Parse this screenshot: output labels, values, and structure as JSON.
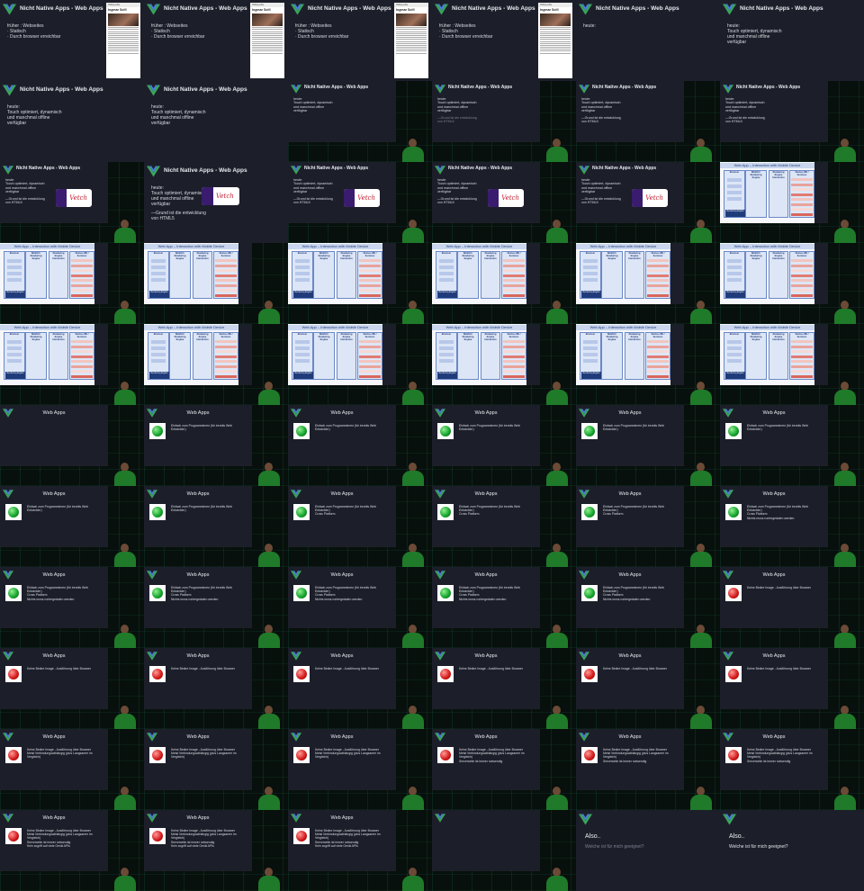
{
  "slides": {
    "nna_title": "Nicht Native Apps - Web Apps",
    "webapps_title": "Web Apps",
    "diagram_title": "Web App – Interaction with Mobile Device",
    "frueher_heading": "früher : Webseites",
    "frueher_items": [
      "Statisch",
      "Durch browser erreichbar"
    ],
    "heute_heading": "heute:",
    "heute_items": [
      "Touch optimiert, dynamisch",
      "und manchmal offline",
      "verfügbar"
    ],
    "grund_items": [
      "—Grund ist die entwicklung",
      "von HTML5"
    ],
    "pro_items": [
      "Einfach zum Programmieren (für bereits Web",
      "Entwickler)",
      "Cross Platform",
      "Nichts muss runtergeladen werden"
    ],
    "contra_items": [
      "Keine Binäre Image - Ausführung über Browser",
      "Meist Verbindungsabhängig (plus Langsamer im",
      "Vergleich)",
      "Serverseite ist immer notwendig",
      "Kein zugriff auf viele Gerät APIs"
    ],
    "also": "Also..",
    "question": "Welche ist für mich geeignet?",
    "phone_bar": "Wikipedia",
    "phone_title": "Ingmar Scifi",
    "logo_text": "Vetch"
  },
  "colors": {
    "slide_bg": "#1c1f2a",
    "accent_green": "#12a12a",
    "accent_red": "#d41616",
    "diagram_blue": "#203a78"
  },
  "diagram": {
    "columns": [
      "Browser",
      "WebKit / Rendering Engine",
      "Rendering Engine Interaction",
      "Device HW / Services"
    ],
    "location": "Rendering Engine"
  }
}
